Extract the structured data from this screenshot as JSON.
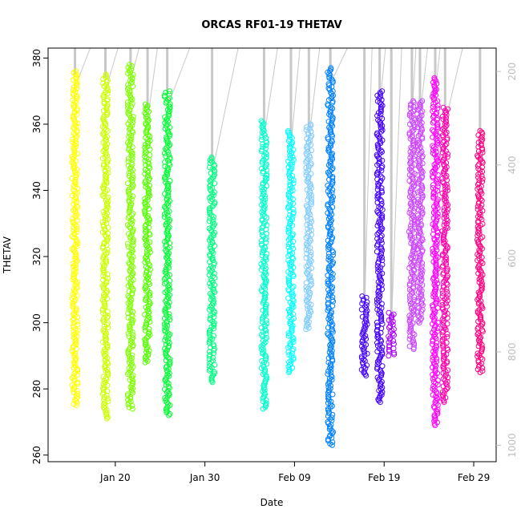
{
  "chart_data": {
    "type": "scatter",
    "title": "ORCAS RF01-19 THETAV",
    "xlabel": "Date",
    "ylabel": "THETAV",
    "x_tick_labels": [
      "Jan 20",
      "Jan 30",
      "Feb 09",
      "Feb 19",
      "Feb 29"
    ],
    "x_tick_days": [
      20,
      30,
      40,
      50,
      60
    ],
    "xlim_days": [
      12.5,
      62.5
    ],
    "ylim": [
      258,
      383
    ],
    "y_ticks": [
      260,
      280,
      300,
      320,
      340,
      360,
      380
    ],
    "right_axis": {
      "label_color": "#bdbdbd",
      "ticks": [
        200,
        400,
        600,
        800,
        1000
      ],
      "range": [
        150,
        1035
      ]
    },
    "grid": false,
    "flight_color_order": [
      "#ffff00",
      "#ccff00",
      "#80ff00",
      "#55ff00",
      "#00ff33",
      "#00ff80",
      "#00ffcc",
      "#00ffff",
      "#80ccff",
      "#0080ff",
      "#4400ff",
      "#aa00ff",
      "#cc44ff",
      "#ff00ff",
      "#ff00aa",
      "#ff0080"
    ],
    "series": [
      {
        "color": "#ffff00",
        "day": 15.5,
        "ymin": 275,
        "ymax": 376
      },
      {
        "color": "#ccff00",
        "day": 18.9,
        "ymin": 271,
        "ymax": 375
      },
      {
        "color": "#80ff00",
        "day": 21.7,
        "ymin": 274,
        "ymax": 378
      },
      {
        "color": "#55ff00",
        "day": 23.6,
        "ymin": 288,
        "ymax": 366
      },
      {
        "color": "#00ff33",
        "day": 25.8,
        "ymin": 272,
        "ymax": 370
      },
      {
        "color": "#00ff80",
        "day": 30.8,
        "ymin": 282,
        "ymax": 350
      },
      {
        "color": "#00ffcc",
        "day": 36.6,
        "ymin": 274,
        "ymax": 361
      },
      {
        "color": "#00ffff",
        "day": 39.6,
        "ymin": 285,
        "ymax": 358
      },
      {
        "color": "#80ccff",
        "day": 41.6,
        "ymin": 298,
        "ymax": 360
      },
      {
        "color": "#0080ff",
        "day": 44.0,
        "ymin": 263,
        "ymax": 377
      },
      {
        "color": "#4400ff",
        "day": 47.8,
        "ymin": 284,
        "ymax": 308
      },
      {
        "color": "#4400ff",
        "day": 49.5,
        "ymin": 276,
        "ymax": 370
      },
      {
        "color": "#aa00ff",
        "day": 50.8,
        "ymin": 290,
        "ymax": 303
      },
      {
        "color": "#cc44ff",
        "day": 53.1,
        "ymin": 292,
        "ymax": 367
      },
      {
        "color": "#cc44ff",
        "day": 54.0,
        "ymin": 300,
        "ymax": 367
      },
      {
        "color": "#ff00ff",
        "day": 55.7,
        "ymin": 269,
        "ymax": 374
      },
      {
        "color": "#ff00aa",
        "day": 56.8,
        "ymin": 276,
        "ymax": 365
      },
      {
        "color": "#ff0080",
        "day": 60.7,
        "ymin": 285,
        "ymax": 358
      }
    ]
  }
}
